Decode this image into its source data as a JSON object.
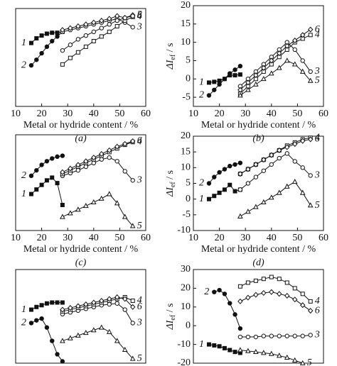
{
  "chart_data": [
    {
      "type": "line",
      "xlabel": "Metal or hydride content / %",
      "caption": "(a)",
      "xlim": [
        10,
        60
      ],
      "xticks": [
        10,
        20,
        30,
        40,
        50,
        60
      ],
      "ylim": [
        0,
        105
      ],
      "series": [
        {
          "name": "1",
          "marker": "square-filled",
          "x": [
            16,
            18,
            20,
            22,
            24,
            26,
            28
          ],
          "values": [
            68,
            73,
            76,
            78,
            79,
            79,
            80
          ]
        },
        {
          "name": "2",
          "marker": "circle-filled",
          "x": [
            16,
            18,
            20,
            22,
            24,
            26,
            28
          ],
          "values": [
            44,
            50,
            57,
            64,
            70,
            75,
            80
          ]
        },
        {
          "name": "3",
          "marker": "circle-open",
          "x": [
            28,
            31,
            34,
            37,
            40,
            43,
            46,
            49,
            52,
            55
          ],
          "values": [
            80,
            82,
            84,
            86,
            88,
            90,
            92,
            94,
            90,
            85
          ]
        },
        {
          "name": "4",
          "marker": "square-open",
          "x": [
            28,
            31,
            34,
            37,
            40,
            43,
            46,
            49,
            52,
            55
          ],
          "values": [
            45,
            52,
            58,
            64,
            70,
            75,
            80,
            86,
            92,
            96
          ]
        },
        {
          "name": "5",
          "marker": "diamond-open",
          "x": [
            28,
            31,
            34,
            37,
            40,
            43,
            46,
            49,
            52,
            55
          ],
          "values": [
            82,
            84,
            86,
            88,
            90,
            92,
            94,
            97,
            95,
            98
          ]
        },
        {
          "name": "6",
          "marker": "circle-open",
          "x": [
            28,
            31,
            34,
            37,
            40,
            43,
            46,
            49,
            52,
            55
          ],
          "values": [
            60,
            66,
            72,
            76,
            80,
            84,
            88,
            92,
            95,
            97
          ]
        }
      ]
    },
    {
      "type": "line",
      "xlabel": "Metal or hydride content / %",
      "caption": "(b)",
      "ylabel": "ΔI",
      "ylabel_sub": "ef",
      "ylabel_unit": " / s",
      "xlim": [
        10,
        60
      ],
      "xticks": [
        10,
        20,
        30,
        40,
        50,
        60
      ],
      "ylim": [
        -7.5,
        20
      ],
      "yticks": [
        -5,
        0,
        5,
        10,
        15,
        20
      ],
      "series": [
        {
          "name": "1",
          "marker": "square-filled",
          "x": [
            16,
            18,
            20,
            22,
            24,
            26,
            28
          ],
          "values": [
            -1,
            -0.8,
            -0.5,
            0,
            1,
            1,
            1.2
          ]
        },
        {
          "name": "2",
          "marker": "circle-filled",
          "x": [
            16,
            18,
            20,
            22,
            24,
            26,
            28
          ],
          "values": [
            -4.5,
            -3,
            -1.5,
            0,
            1.5,
            2.5,
            3.5
          ]
        },
        {
          "name": "3",
          "marker": "circle-open",
          "x": [
            28,
            31,
            34,
            37,
            40,
            43,
            46,
            49,
            52,
            55
          ],
          "values": [
            -2,
            0,
            2,
            4,
            6,
            8,
            10,
            8,
            5,
            2
          ]
        },
        {
          "name": "4",
          "marker": "square-open",
          "x": [
            28,
            31,
            34,
            37,
            40,
            43,
            46,
            49,
            52,
            55
          ],
          "values": [
            -4,
            -2,
            0,
            2,
            4,
            6,
            8,
            10,
            11,
            12
          ]
        },
        {
          "name": "5",
          "marker": "triangle-open",
          "x": [
            28,
            31,
            34,
            37,
            40,
            43,
            46,
            49,
            52,
            55
          ],
          "values": [
            -4.5,
            -3,
            -1.5,
            0,
            1.5,
            3,
            5,
            4,
            2,
            -0.5
          ]
        },
        {
          "name": "6",
          "marker": "diamond-open",
          "x": [
            28,
            31,
            34,
            37,
            40,
            43,
            46,
            49,
            52,
            55
          ],
          "values": [
            -3,
            -1,
            1,
            3,
            5,
            7,
            9,
            10.5,
            12,
            13.5
          ]
        }
      ]
    },
    {
      "type": "line",
      "xlabel": "Metal or hydride content / %",
      "caption": "(c)",
      "xlim": [
        10,
        60
      ],
      "xticks": [
        10,
        20,
        30,
        40,
        50,
        60
      ],
      "ylim": [
        0,
        105
      ],
      "series": [
        {
          "name": "1",
          "marker": "square-filled",
          "x": [
            16,
            18,
            20,
            22,
            24,
            26,
            28
          ],
          "values": [
            40,
            45,
            50,
            55,
            58,
            52,
            28
          ]
        },
        {
          "name": "2",
          "marker": "circle-filled",
          "x": [
            16,
            18,
            20,
            22,
            24,
            26,
            28
          ],
          "values": [
            60,
            66,
            72,
            76,
            79,
            81,
            82
          ]
        },
        {
          "name": "3",
          "marker": "circle-open",
          "x": [
            28,
            31,
            34,
            37,
            40,
            43,
            46,
            49,
            52,
            55
          ],
          "values": [
            60,
            63,
            66,
            70,
            74,
            78,
            80,
            76,
            65,
            55
          ]
        },
        {
          "name": "4",
          "marker": "square-open",
          "x": [
            28,
            31,
            34,
            37,
            40,
            43,
            46,
            49,
            52,
            55
          ],
          "values": [
            62,
            66,
            70,
            74,
            78,
            82,
            86,
            90,
            94,
            97
          ]
        },
        {
          "name": "5",
          "marker": "triangle-open",
          "x": [
            28,
            31,
            34,
            37,
            40,
            43,
            46,
            49,
            52,
            55
          ],
          "values": [
            15,
            19,
            23,
            27,
            31,
            35,
            40,
            30,
            15,
            5
          ]
        },
        {
          "name": "6",
          "marker": "diamond-open",
          "x": [
            28,
            31,
            34,
            37,
            40,
            43,
            46,
            49,
            52,
            55
          ],
          "values": [
            64,
            68,
            72,
            76,
            80,
            84,
            88,
            92,
            95,
            98
          ]
        }
      ]
    },
    {
      "type": "line",
      "xlabel": "Metal or hydride content / %",
      "caption": "(d)",
      "ylabel": "ΔI",
      "ylabel_sub": "ef",
      "ylabel_unit": " / s",
      "xlim": [
        10,
        60
      ],
      "xticks": [
        10,
        20,
        30,
        40,
        50,
        60
      ],
      "ylim": [
        -10,
        20
      ],
      "yticks": [
        -10,
        -5,
        0,
        5,
        10,
        15,
        20
      ],
      "series": [
        {
          "name": "1",
          "marker": "square-filled",
          "x": [
            16,
            18,
            20,
            22,
            24,
            26,
            28
          ],
          "values": [
            0,
            1,
            2,
            3,
            4.5,
            2.5,
            3
          ]
        },
        {
          "name": "2",
          "marker": "circle-filled",
          "x": [
            16,
            18,
            20,
            22,
            24,
            26,
            28
          ],
          "values": [
            5,
            7,
            8.5,
            9.5,
            10.5,
            11,
            11.5
          ]
        },
        {
          "name": "3",
          "marker": "circle-open",
          "x": [
            28,
            31,
            34,
            37,
            40,
            43,
            46,
            49,
            52,
            55
          ],
          "values": [
            3,
            5,
            7,
            9,
            11,
            13,
            14.5,
            12,
            10,
            7.5
          ]
        },
        {
          "name": "4",
          "marker": "square-open",
          "x": [
            28,
            31,
            34,
            37,
            40,
            43,
            46,
            49,
            52,
            55
          ],
          "values": [
            8,
            9.5,
            11,
            12.5,
            14,
            15.5,
            17,
            18,
            19,
            19.5
          ]
        },
        {
          "name": "5",
          "marker": "triangle-open",
          "x": [
            28,
            31,
            34,
            37,
            40,
            43,
            46,
            49,
            52,
            55
          ],
          "values": [
            -5.5,
            -4,
            -2.5,
            -1,
            0.5,
            2,
            4,
            5.5,
            2,
            -2
          ]
        },
        {
          "name": "6",
          "marker": "diamond-open",
          "x": [
            28,
            31,
            34,
            37,
            40,
            43,
            46,
            49,
            52,
            55
          ],
          "values": [
            8,
            9.5,
            11,
            12.5,
            14,
            15.5,
            16.5,
            17.5,
            18.5,
            19
          ]
        }
      ]
    },
    {
      "type": "line",
      "xlim": [
        10,
        60
      ],
      "ylim": [
        0,
        105
      ],
      "series": [
        {
          "name": "1",
          "marker": "square-filled",
          "x": [
            16,
            18,
            20,
            22,
            24,
            26,
            28
          ],
          "values": [
            60,
            63,
            65,
            67,
            68,
            68,
            68
          ]
        },
        {
          "name": "2",
          "marker": "circle-filled",
          "x": [
            16,
            18,
            20,
            22,
            24,
            26,
            28
          ],
          "values": [
            45,
            48,
            50,
            40,
            25,
            10,
            2
          ]
        },
        {
          "name": "3",
          "marker": "circle-open",
          "x": [
            28,
            31,
            34,
            37,
            40,
            43,
            46,
            49,
            52,
            55
          ],
          "values": [
            55,
            57,
            59,
            61,
            63,
            65,
            66,
            67,
            60,
            45
          ]
        },
        {
          "name": "4",
          "marker": "square-open",
          "x": [
            28,
            31,
            34,
            37,
            40,
            43,
            46,
            49,
            52,
            55
          ],
          "values": [
            58,
            60,
            62,
            64,
            66,
            68,
            70,
            72,
            74,
            70
          ]
        },
        {
          "name": "5",
          "marker": "triangle-open",
          "x": [
            28,
            31,
            34,
            37,
            40,
            43,
            46,
            49,
            52,
            55
          ],
          "values": [
            25,
            28,
            31,
            34,
            37,
            40,
            35,
            25,
            15,
            5
          ]
        },
        {
          "name": "6",
          "marker": "diamond-open",
          "x": [
            28,
            31,
            34,
            37,
            40,
            43,
            46,
            49,
            52,
            55
          ],
          "values": [
            60,
            62,
            64,
            66,
            68,
            70,
            72,
            74,
            72,
            63
          ]
        }
      ]
    },
    {
      "type": "line",
      "ylabel": "ΔI",
      "ylabel_sub": "ef",
      "ylabel_unit": " / s",
      "xlim": [
        10,
        60
      ],
      "ylim": [
        -20,
        30
      ],
      "yticks": [
        -20,
        -10,
        0,
        10,
        20,
        30
      ],
      "series": [
        {
          "name": "1",
          "marker": "square-filled",
          "x": [
            16,
            18,
            20,
            22,
            24,
            26,
            28
          ],
          "values": [
            -10,
            -10.5,
            -11,
            -12,
            -13,
            -14,
            -14.5
          ]
        },
        {
          "name": "2",
          "marker": "circle-filled",
          "x": [
            18,
            20,
            22,
            24,
            26,
            28
          ],
          "values": [
            18,
            19,
            17,
            12,
            6,
            -1.5
          ]
        },
        {
          "name": "3",
          "marker": "circle-open",
          "x": [
            28,
            31,
            34,
            37,
            40,
            43,
            46,
            49,
            52,
            55
          ],
          "values": [
            -6,
            -6,
            -6,
            -5.5,
            -5.5,
            -5.5,
            -5.5,
            -5.5,
            -5.5,
            -5
          ]
        },
        {
          "name": "4",
          "marker": "square-open",
          "x": [
            28,
            31,
            34,
            37,
            40,
            43,
            46,
            49,
            52,
            55
          ],
          "values": [
            21,
            23,
            24,
            25,
            26,
            25,
            23,
            20,
            17,
            13
          ]
        },
        {
          "name": "5",
          "marker": "triangle-open",
          "x": [
            28,
            31,
            34,
            37,
            40,
            43,
            46,
            49,
            52
          ],
          "values": [
            -13,
            -13.5,
            -14,
            -14.5,
            -15,
            -16,
            -17,
            -18.5,
            -20
          ]
        },
        {
          "name": "6",
          "marker": "diamond-open",
          "x": [
            28,
            31,
            34,
            37,
            40,
            43,
            46,
            49,
            52,
            55
          ],
          "values": [
            13,
            15,
            16.5,
            17.5,
            18,
            17,
            16,
            14,
            11,
            8
          ]
        }
      ]
    }
  ]
}
